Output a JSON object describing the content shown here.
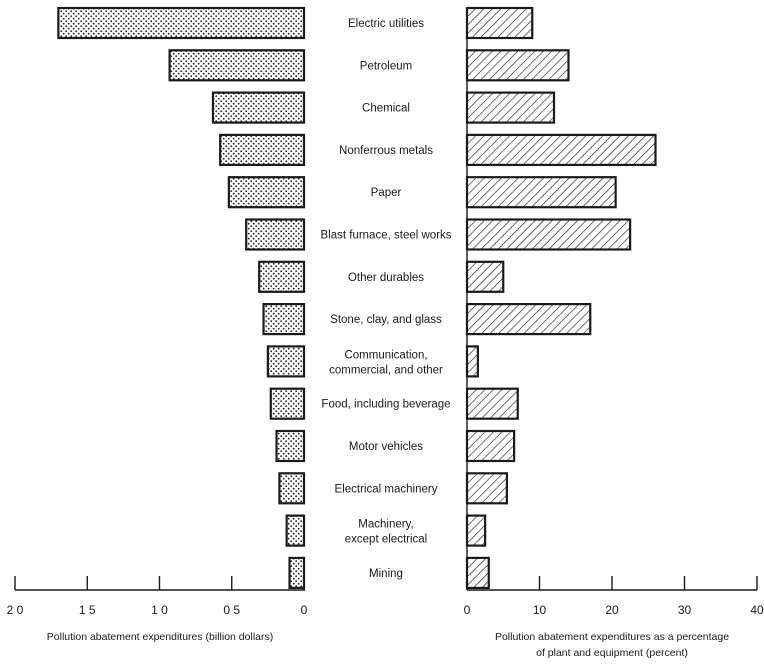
{
  "chart_data": [
    {
      "type": "bar",
      "orientation": "horizontal",
      "direction": "right-to-left",
      "categories": [
        "Electric utilities",
        "Petroleum",
        "Chemical",
        "Nonferrous metals",
        "Paper",
        "Blast furnace, steel works",
        "Other durables",
        "Stone, clay, and glass",
        "Communication, commercial, and other",
        "Food, including beverage",
        "Motor vehicles",
        "Electrical machinery",
        "Machinery, except electrical",
        "Mining"
      ],
      "values": [
        1.7,
        0.93,
        0.63,
        0.58,
        0.52,
        0.4,
        0.31,
        0.28,
        0.25,
        0.23,
        0.19,
        0.17,
        0.12,
        0.1
      ],
      "xlabel": "Pollution abatement expenditures (billion dollars)",
      "xlim": [
        0,
        2.0
      ],
      "ticks": [
        2.0,
        1.5,
        1.0,
        0.5,
        0
      ],
      "tick_labels": [
        "2 0",
        "1 5",
        "1 0",
        "0 5",
        "0"
      ],
      "fill_pattern": "crosshatch-dots",
      "grid": false
    },
    {
      "type": "bar",
      "orientation": "horizontal",
      "categories": [
        "Electric utilities",
        "Petroleum",
        "Chemical",
        "Nonferrous metals",
        "Paper",
        "Blast furnace, steel works",
        "Other durables",
        "Stone, clay, and glass",
        "Communication, commercial, and other",
        "Food, including beverage",
        "Motor vehicles",
        "Electrical machinery",
        "Machinery, except electrical",
        "Mining"
      ],
      "values": [
        9,
        14,
        12,
        26,
        20.5,
        22.5,
        5,
        17,
        1.5,
        7,
        6.5,
        5.5,
        2.5,
        3
      ],
      "xlabel": "Pollution abatement expenditures as a percentage of plant and equipment (percent)",
      "xlim": [
        0,
        40
      ],
      "ticks": [
        0,
        10,
        20,
        30,
        40
      ],
      "tick_labels": [
        "0",
        "10",
        "20",
        "30",
        "40"
      ],
      "fill_pattern": "diagonal-hatch",
      "grid": false
    }
  ],
  "category_label_lines": [
    [
      "Electric utilities"
    ],
    [
      "Petroleum"
    ],
    [
      "Chemical"
    ],
    [
      "Nonferrous metals"
    ],
    [
      "Paper"
    ],
    [
      "Blast furnace, steel works"
    ],
    [
      "Other durables"
    ],
    [
      "Stone, clay, and glass"
    ],
    [
      "Communication,",
      "commercial, and other"
    ],
    [
      "Food, including beverage"
    ],
    [
      "Motor vehicles"
    ],
    [
      "Electrical machinery"
    ],
    [
      "Machinery,",
      "except electrical"
    ],
    [
      "Mining"
    ]
  ],
  "right_xlabel_lines": [
    "Pollution abatement expenditures as a percentage",
    "of plant and equipment (percent)"
  ]
}
